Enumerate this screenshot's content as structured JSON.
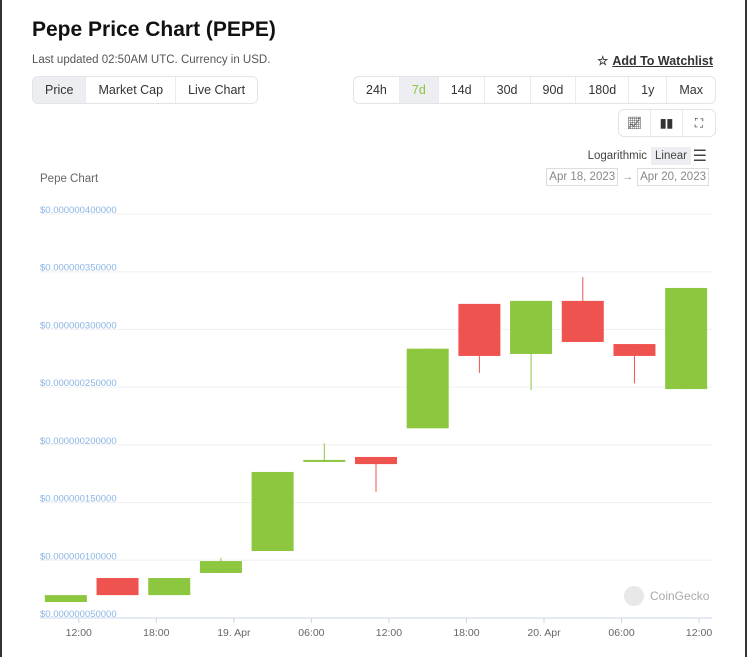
{
  "header": {
    "title": "Pepe Price Chart (PEPE)",
    "subtitle": "Last updated 02:50AM UTC. Currency in USD.",
    "watchlist": "Add To Watchlist"
  },
  "view_tabs": [
    "Price",
    "Market Cap",
    "Live Chart"
  ],
  "range_tabs": [
    "24h",
    "7d",
    "14d",
    "30d",
    "90d",
    "180d",
    "1y",
    "Max"
  ],
  "active_range": "7d",
  "scale": {
    "log": "Logarithmic",
    "linear": "Linear"
  },
  "date_range": {
    "from": "Apr 18, 2023",
    "arrow": "→",
    "to": "Apr 20, 2023"
  },
  "watermark": "CoinGecko",
  "colors": {
    "up": "#8dc63f",
    "down": "#ef5350",
    "axis_label": "#8ab4e6"
  },
  "chart_data": {
    "type": "candlestick",
    "title": "Pepe Chart",
    "x_unit": "hours since Apr 18 12:00 UTC",
    "xlim": [
      -3,
      49
    ],
    "ylim": [
      5e-08,
      4e-07
    ],
    "y_ticks": [
      {
        "v": 5e-08,
        "label": "$0.000000050000"
      },
      {
        "v": 1e-07,
        "label": "$0.000000100000"
      },
      {
        "v": 1.5e-07,
        "label": "$0.000000150000"
      },
      {
        "v": 2e-07,
        "label": "$0.000000200000"
      },
      {
        "v": 2.5e-07,
        "label": "$0.000000250000"
      },
      {
        "v": 3e-07,
        "label": "$0.000000300000"
      },
      {
        "v": 3.5e-07,
        "label": "$0.000000350000"
      },
      {
        "v": 4e-07,
        "label": "$0.000000400000"
      }
    ],
    "x_ticks": [
      {
        "h": 0,
        "label": "12:00"
      },
      {
        "h": 6,
        "label": "18:00"
      },
      {
        "h": 12,
        "label": "19. Apr"
      },
      {
        "h": 18,
        "label": "06:00"
      },
      {
        "h": 24,
        "label": "12:00"
      },
      {
        "h": 30,
        "label": "18:00"
      },
      {
        "h": 36,
        "label": "20. Apr"
      },
      {
        "h": 42,
        "label": "06:00"
      },
      {
        "h": 48,
        "label": "12:00"
      }
    ],
    "candles_1e9": [
      {
        "h": -1,
        "o": 59.5,
        "c": 65.5,
        "hi": 65.5,
        "lo": 59.5
      },
      {
        "h": 3,
        "o": 80.3,
        "c": 65.5,
        "hi": 80.3,
        "lo": 65.5
      },
      {
        "h": 7,
        "o": 65.5,
        "c": 80.3,
        "hi": 80.3,
        "lo": 65.5
      },
      {
        "h": 11,
        "o": 84.7,
        "c": 95,
        "hi": 97.7,
        "lo": 84.7
      },
      {
        "h": 15,
        "o": 103.7,
        "c": 172.2,
        "hi": 172.2,
        "lo": 103.7
      },
      {
        "h": 19,
        "o": 181,
        "c": 182.6,
        "hi": 197,
        "lo": 181
      },
      {
        "h": 23,
        "o": 185.2,
        "c": 179,
        "hi": 185.2,
        "lo": 155
      },
      {
        "h": 27,
        "o": 210,
        "c": 279,
        "hi": 279,
        "lo": 210
      },
      {
        "h": 31,
        "o": 317.8,
        "c": 272.7,
        "hi": 317.8,
        "lo": 258
      },
      {
        "h": 35,
        "o": 274.4,
        "c": 320.4,
        "hi": 320.4,
        "lo": 243
      },
      {
        "h": 39,
        "o": 320.4,
        "c": 284.8,
        "hi": 341,
        "lo": 284.8
      },
      {
        "h": 43,
        "o": 283,
        "c": 272.7,
        "hi": 283,
        "lo": 249
      },
      {
        "h": 47,
        "o": 244,
        "c": 331.6,
        "hi": 331.6,
        "lo": 244
      }
    ]
  }
}
